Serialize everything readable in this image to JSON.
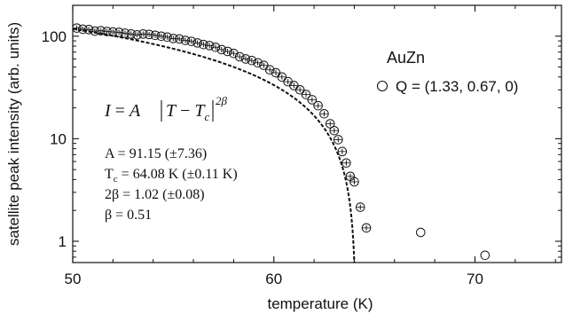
{
  "chart_data": {
    "type": "scatter",
    "title": "",
    "xlabel": "temperature (K)",
    "ylabel": "satellite peak intensity (arb. units)",
    "xlim": [
      50,
      74.3
    ],
    "ylim": [
      0.62,
      200
    ],
    "y_scale": "log",
    "x_ticks": [
      50,
      60,
      70
    ],
    "x_tick_labels": [
      "50",
      "60",
      "70"
    ],
    "y_ticks": [
      1,
      10,
      100
    ],
    "y_tick_labels": [
      "1",
      "10",
      "100"
    ],
    "grid": false,
    "legend": {
      "position": "top-right",
      "title": "AuZn",
      "entries": [
        {
          "marker": "open-circle",
          "label": "Q = (1.33, 0.67, 0)"
        }
      ]
    },
    "series": [
      {
        "name": "Q = (1.33, 0.67, 0)",
        "marker": "open-circle-with-errorbar",
        "points": [
          [
            50.2,
            120
          ],
          [
            50.5,
            117
          ],
          [
            50.8,
            116
          ],
          [
            51.1,
            112
          ],
          [
            51.4,
            113
          ],
          [
            51.7,
            111
          ],
          [
            52.0,
            110
          ],
          [
            52.3,
            109
          ],
          [
            52.6,
            107
          ],
          [
            52.9,
            105
          ],
          [
            53.2,
            103
          ],
          [
            53.5,
            105
          ],
          [
            53.8,
            104
          ],
          [
            54.1,
            102
          ],
          [
            54.4,
            100
          ],
          [
            54.7,
            98
          ],
          [
            55.0,
            95
          ],
          [
            55.3,
            94
          ],
          [
            55.6,
            91
          ],
          [
            55.9,
            89
          ],
          [
            56.2,
            86
          ],
          [
            56.5,
            83
          ],
          [
            56.8,
            81
          ],
          [
            57.1,
            78
          ],
          [
            57.4,
            74
          ],
          [
            57.7,
            71
          ],
          [
            58.0,
            68
          ],
          [
            58.3,
            63
          ],
          [
            58.6,
            60
          ],
          [
            58.9,
            58
          ],
          [
            59.2,
            55
          ],
          [
            59.5,
            52
          ],
          [
            59.8,
            47
          ],
          [
            60.1,
            44
          ],
          [
            60.4,
            40
          ],
          [
            60.7,
            36
          ],
          [
            61.0,
            33
          ],
          [
            61.3,
            30
          ],
          [
            61.6,
            27
          ],
          [
            61.9,
            24
          ],
          [
            62.2,
            21
          ],
          [
            62.5,
            17.5
          ],
          [
            62.8,
            14
          ],
          [
            63.0,
            12
          ],
          [
            63.2,
            9.8
          ],
          [
            63.4,
            7.5
          ],
          [
            63.6,
            5.8
          ],
          [
            63.8,
            4.3
          ],
          [
            64.0,
            3.8
          ],
          [
            64.3,
            2.15
          ],
          [
            64.6,
            1.35
          ],
          [
            67.3,
            1.22
          ],
          [
            70.5,
            0.73
          ]
        ]
      }
    ],
    "fit": {
      "name": "I = A|T - Tc|^2β",
      "style": "dashed",
      "A": 91.15,
      "Tc": 64.08,
      "two_beta": 1.02
    },
    "annotations": {
      "formula": {
        "I": "I",
        "eq": " = ",
        "A": "A",
        "T": "T",
        "minus": " − ",
        "Tc": "T",
        "c": "c",
        "exp": "2β"
      },
      "params": [
        {
          "main": "A = 91.15 ",
          "err": "(±7.36)"
        },
        {
          "main": "T",
          "sub": "c",
          "rest": " = 64.08 K ",
          "err": "(±0.11 K)"
        },
        {
          "main": "2β = 1.02 ",
          "err": "(±0.08)"
        },
        {
          "main": "β = 0.51",
          "err": ""
        }
      ]
    }
  }
}
